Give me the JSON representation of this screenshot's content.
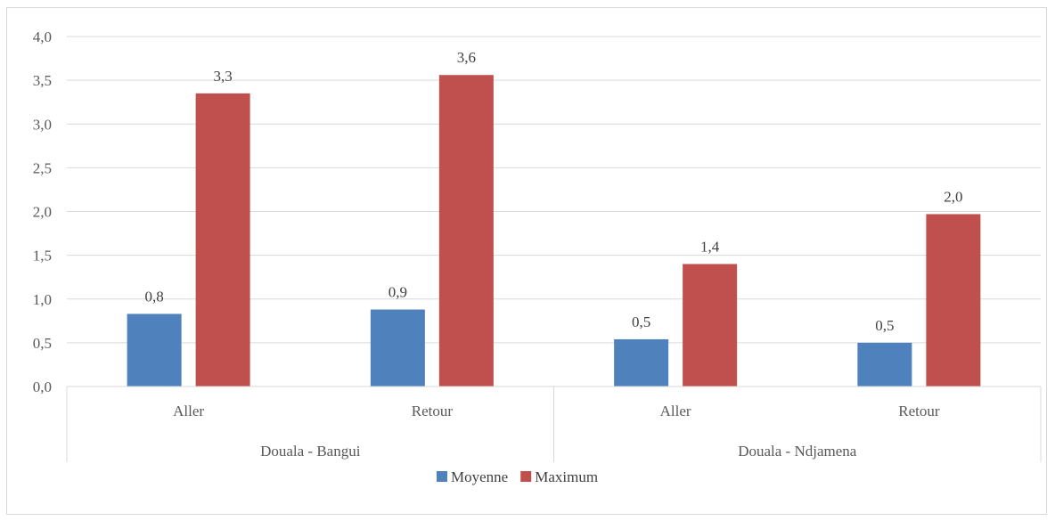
{
  "chart_data": {
    "type": "bar",
    "title": "",
    "xlabel": "",
    "ylabel": "",
    "ylim": [
      0,
      4
    ],
    "yticks": [
      "0,0",
      "0,5",
      "1,0",
      "1,5",
      "2,0",
      "2,5",
      "3,0",
      "3,5",
      "4,0"
    ],
    "groups": [
      {
        "label": "Douala - Bangui",
        "categories": [
          "Aller",
          "Retour"
        ]
      },
      {
        "label": "Douala - Ndjamena",
        "categories": [
          "Aller",
          "Retour"
        ]
      }
    ],
    "series": [
      {
        "name": "Moyenne",
        "color": "#4f81bd",
        "values": [
          0.83,
          0.88,
          0.54,
          0.5
        ],
        "labels": [
          "0,8",
          "0,9",
          "0,5",
          "0,5"
        ]
      },
      {
        "name": "Maximum",
        "color": "#c0504d",
        "values": [
          3.35,
          3.56,
          1.4,
          1.97
        ],
        "labels": [
          "3,3",
          "3,6",
          "1,4",
          "2,0"
        ]
      }
    ],
    "grid": true,
    "legend_position": "bottom"
  }
}
